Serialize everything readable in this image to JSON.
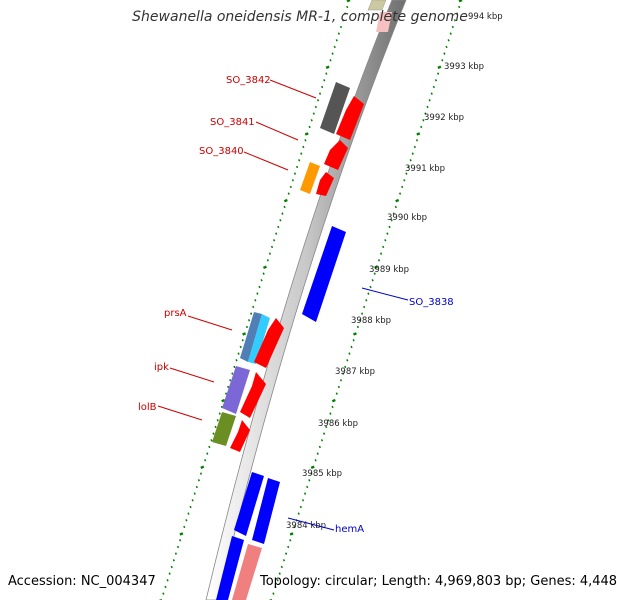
{
  "header": {
    "title": "Shewanella oneidensis MR-1, complete genome"
  },
  "footer": {
    "accession": "Accession: NC_004347",
    "topology": "Topology: circular; Length: 4,969,803 bp; Genes: 4,448"
  },
  "colors": {
    "tick_green": "#008000",
    "backbone": "#999999",
    "gene_red": "#ff0000",
    "gene_blue": "#0000ff",
    "gene_gray": "#555555",
    "gene_orange": "#ff9900",
    "gene_steelblue": "#4f7fb5",
    "gene_cyan": "#33ccff",
    "gene_purple": "#7b68d6",
    "gene_olive": "#6b8e23",
    "gene_pink": "#f08080",
    "gene_khaki": "#ccc8a0",
    "label_red": "#cc0000",
    "label_blue": "#0000cc"
  },
  "scale_labels": [
    "994 kbp",
    "3993 kbp",
    "3992 kbp",
    "3991 kbp",
    "3990 kbp",
    "3989 kbp",
    "3988 kbp",
    "3987 kbp",
    "3986 kbp",
    "3985 kbp",
    "3984 kbp"
  ],
  "gene_labels_left": [
    "SO_3842",
    "SO_3841",
    "SO_3840",
    "prsA",
    "ipk",
    "lolB"
  ],
  "gene_labels_right": [
    "SO_3838",
    "hemA"
  ]
}
